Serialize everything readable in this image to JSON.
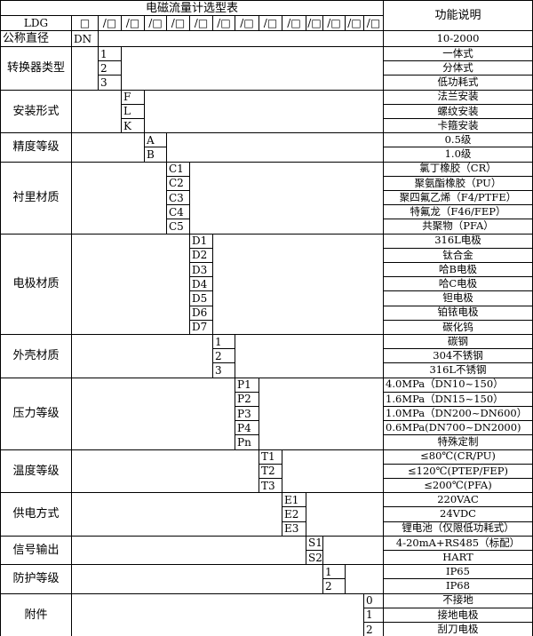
{
  "header": {
    "title": "电磁流量计选型表",
    "function_header": "功能说明",
    "model_prefix": "LDG",
    "code_boxes": [
      "□",
      "/□",
      "/□",
      "/□",
      "/□",
      "/□",
      "/□",
      "/□",
      "/□",
      "/□",
      "/□",
      "/□",
      "/□",
      "/□"
    ]
  },
  "nominal_diameter": {
    "label": "公称直径",
    "code": "DN",
    "description": "10-2000"
  },
  "sections": [
    {
      "label": "转换器类型",
      "column": 1,
      "codes": [
        "1",
        "2",
        "3"
      ],
      "descriptions": [
        "一体式",
        "分体式",
        "低功耗式"
      ]
    },
    {
      "label": "安装形式",
      "column": 2,
      "codes": [
        "F",
        "L",
        "K"
      ],
      "descriptions": [
        "法兰安装",
        "螺纹安装",
        "卡箍安装"
      ]
    },
    {
      "label": "精度等级",
      "column": 3,
      "codes": [
        "A",
        "B"
      ],
      "descriptions": [
        "0.5级",
        "1.0级"
      ]
    },
    {
      "label": "衬里材质",
      "column": 4,
      "codes": [
        "C1",
        "C2",
        "C3",
        "C4",
        "C5"
      ],
      "descriptions": [
        "氯丁橡胶（CR）",
        "聚氨酯橡胶（PU）",
        "聚四氟乙烯（F4/PTFE）",
        "特氟龙（F46/FEP）",
        "共聚物（PFA）"
      ]
    },
    {
      "label": "电极材质",
      "column": 5,
      "codes": [
        "D1",
        "D2",
        "D3",
        "D4",
        "D5",
        "D6",
        "D7"
      ],
      "descriptions": [
        "316L电极",
        "钛合金",
        "哈B电极",
        "哈C电极",
        "钽电极",
        "铂铱电极",
        "碳化钨"
      ]
    },
    {
      "label": "外壳材质",
      "column": 6,
      "codes": [
        "1",
        "2",
        "3"
      ],
      "descriptions": [
        "碳钢",
        "304不锈钢",
        "316L不锈钢"
      ]
    },
    {
      "label": "压力等级",
      "column": 7,
      "codes": [
        "P1",
        "P2",
        "P3",
        "P4",
        "Pn"
      ],
      "descriptions": [
        "4.0MPa（DN10~150）",
        "1.6MPa（DN15~150）",
        "1.0MPa（DN200~DN600）",
        "0.6MPa(DN700~DN2000)",
        "特殊定制"
      ],
      "left_aligned": [
        true,
        true,
        true,
        true,
        false
      ]
    },
    {
      "label": "温度等级",
      "column": 8,
      "codes": [
        "T1",
        "T2",
        "T3"
      ],
      "descriptions": [
        "≤80℃(CR/PU)",
        "≤120℃(PTEP/FEP)",
        "≤200℃(PFA)"
      ]
    },
    {
      "label": "供电方式",
      "column": 9,
      "codes": [
        "E1",
        "E2",
        "E3"
      ],
      "descriptions": [
        "220VAC",
        "24VDC",
        "锂电池（仅限低功耗式）"
      ]
    },
    {
      "label": "信号输出",
      "column": 10,
      "codes": [
        "S1",
        "S2"
      ],
      "descriptions": [
        "4-20mA+RS485（标配）",
        "HART"
      ]
    },
    {
      "label": "防护等级",
      "column": 11,
      "codes": [
        "1",
        "2"
      ],
      "descriptions": [
        "IP65",
        "IP68"
      ]
    },
    {
      "label": "附件",
      "column": 13,
      "codes": [
        "0",
        "1",
        "2"
      ],
      "descriptions": [
        "不接地",
        "接地电极",
        "刮刀电极"
      ]
    }
  ]
}
